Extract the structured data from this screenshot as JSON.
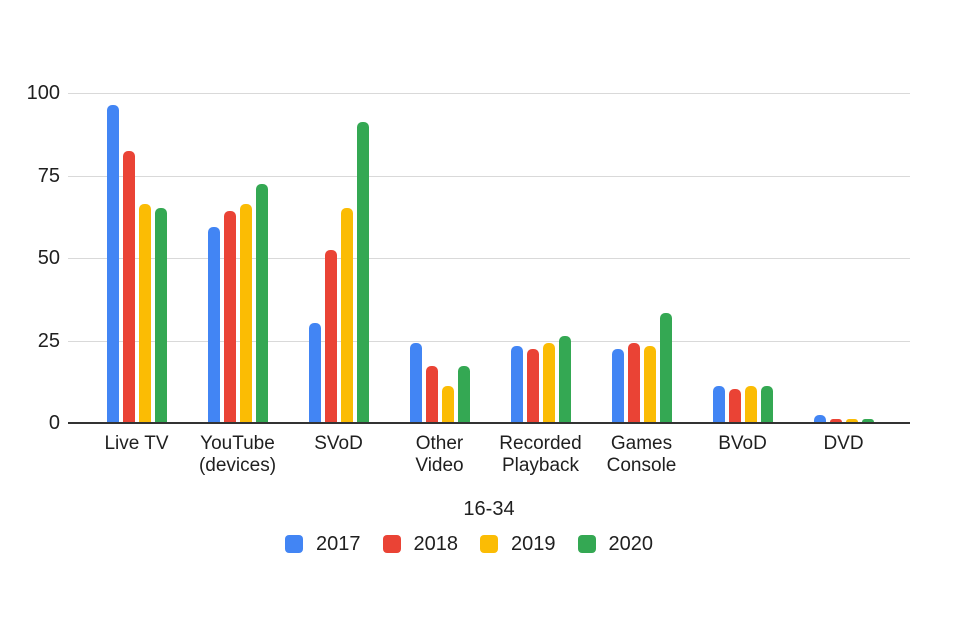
{
  "chart_data": {
    "type": "bar",
    "title": "",
    "xlabel": "16-34",
    "ylabel": "",
    "ylim": [
      0,
      100
    ],
    "yticks": [
      0,
      25,
      50,
      75,
      100
    ],
    "grid": true,
    "legend_position": "bottom",
    "categories": [
      "Live TV",
      "YouTube\n(devices)",
      "SVoD",
      "Other\nVideo",
      "Recorded\nPlayback",
      "Games\nConsole",
      "BVoD",
      "DVD"
    ],
    "series": [
      {
        "name": "2017",
        "color": "#4285F4",
        "values": [
          96,
          59,
          30,
          24,
          23,
          22,
          11,
          2
        ]
      },
      {
        "name": "2018",
        "color": "#EA4335",
        "values": [
          82,
          64,
          52,
          17,
          22,
          24,
          10,
          1
        ]
      },
      {
        "name": "2019",
        "color": "#FBBC04",
        "values": [
          66,
          66,
          65,
          11,
          24,
          23,
          11,
          1
        ]
      },
      {
        "name": "2020",
        "color": "#34A853",
        "values": [
          65,
          72,
          91,
          17,
          26,
          33,
          11,
          1
        ]
      }
    ],
    "colors": {
      "gridline": "#d9d9d9",
      "axis_baseline": "#333333",
      "label_text": "#1f1f1f"
    }
  }
}
